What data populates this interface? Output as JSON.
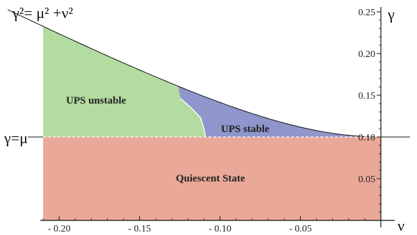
{
  "chart_data": {
    "type": "area",
    "xlabel": "ν",
    "ylabel": "γ",
    "xlim": [
      -0.21,
      0.0
    ],
    "ylim": [
      0.0,
      0.25
    ],
    "x_ticks": [
      -0.2,
      -0.15,
      -0.1,
      -0.05
    ],
    "x_tick_labels": [
      "- 0.20",
      "- 0.15",
      "- 0.10",
      "- 0.05"
    ],
    "y_ticks": [
      0.05,
      0.1,
      0.15,
      0.2,
      0.25
    ],
    "y_tick_labels": [
      "0.05",
      "0.10",
      "0.15",
      "0.20",
      "0.25"
    ],
    "parameters": {
      "mu": 0.1
    },
    "boundaries": {
      "upper_curve_label": "γ²= μ² +ν²",
      "upper_curve_sup": "2",
      "lower_line_label": "γ=μ",
      "lower_line_value": 0.1
    },
    "regions": [
      {
        "name": "UPS unstable",
        "label": "UPS unstable",
        "color": "#b3dca0"
      },
      {
        "name": "UPS stable",
        "label": "UPS stable",
        "color": "#8f96cc"
      },
      {
        "name": "Quiescent State",
        "label": "Quiescent State",
        "color": "#eaa898"
      }
    ],
    "stability_boundary": {
      "nu": [
        -0.109,
        -0.11,
        -0.112,
        -0.118,
        -0.1245
      ],
      "gamma": [
        0.1,
        0.11,
        0.123,
        0.135,
        0.146
      ]
    },
    "grid": false
  },
  "colors": {
    "unstable": "#b3dca0",
    "stable": "#8f96cc",
    "quiescent": "#eaa898",
    "axis": "#111111"
  }
}
